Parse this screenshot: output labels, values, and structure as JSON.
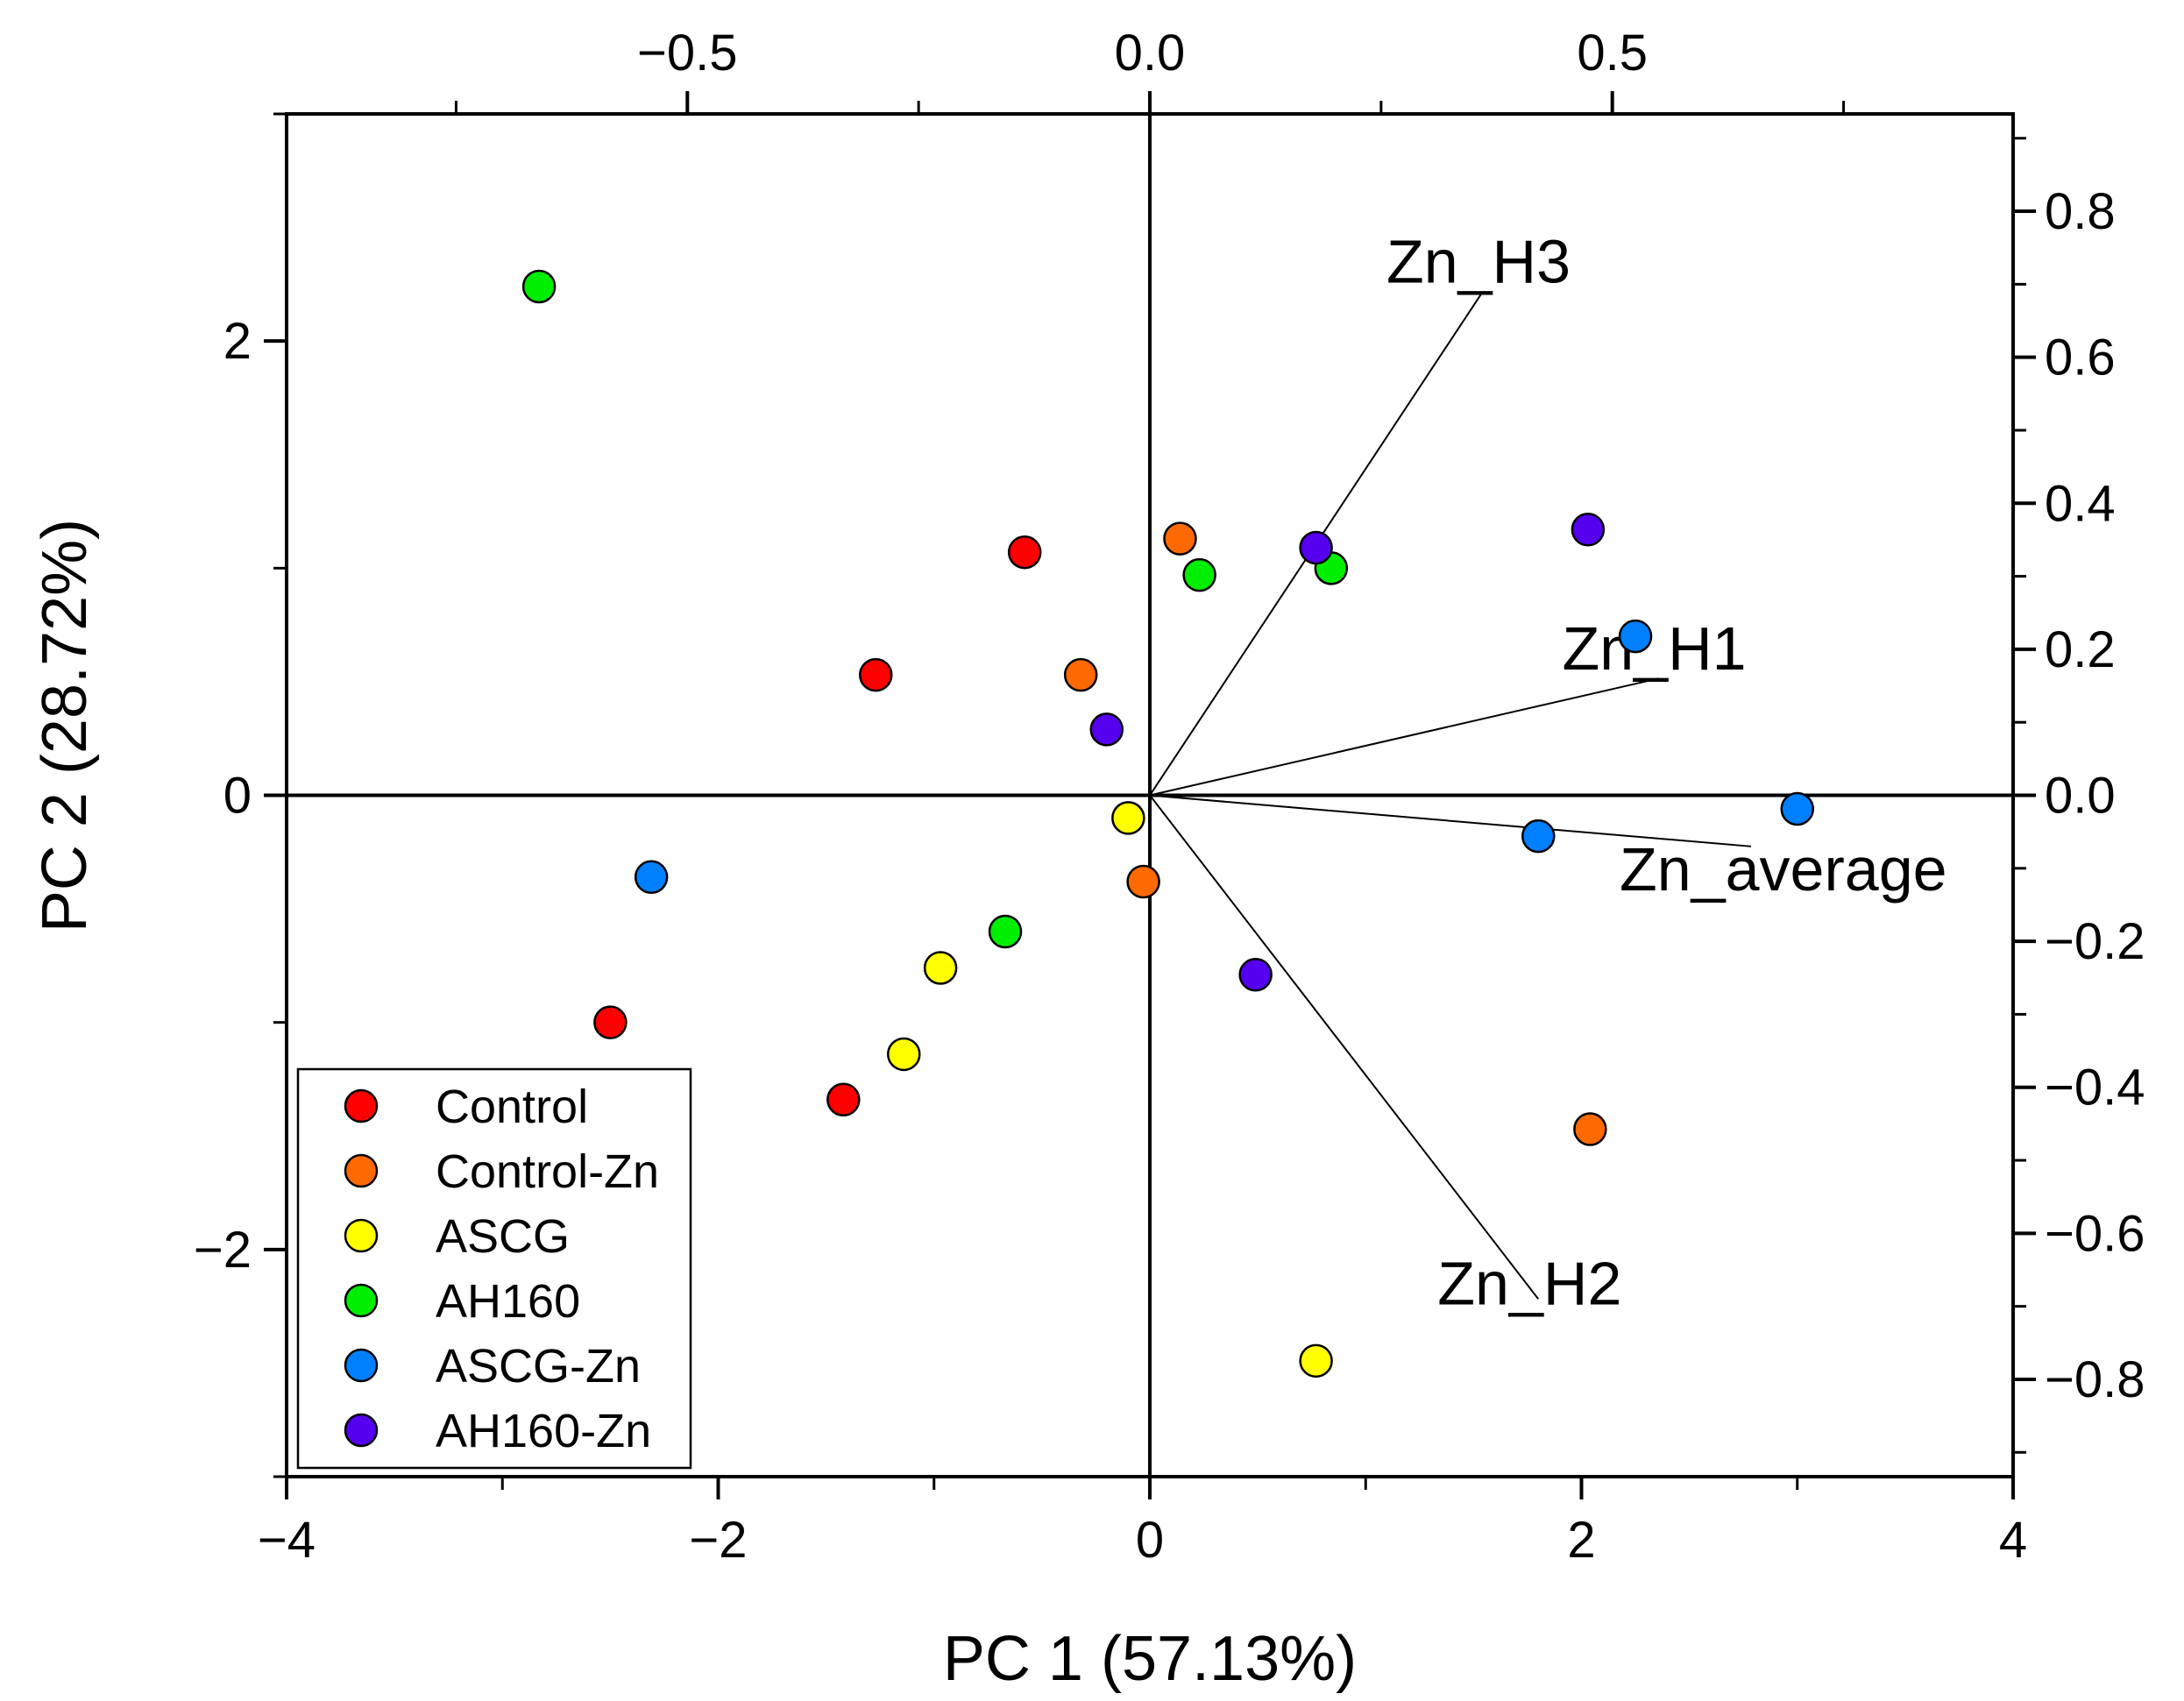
{
  "chart_data": {
    "type": "scatter",
    "title": "",
    "xlabel": "PC 1 (57.13%)",
    "ylabel": "PC 2 (28.72%)",
    "xlim": [
      -4,
      4
    ],
    "ylim": [
      -3,
      3
    ],
    "x_ticks": [
      -4,
      -2,
      0,
      2,
      4
    ],
    "y_ticks": [
      -2,
      0,
      2
    ],
    "top_axis": {
      "lim": [
        -0.9333,
        0.9333
      ],
      "ticks": [
        -0.5,
        0.0,
        0.5
      ]
    },
    "right_axis": {
      "lim": [
        -0.9333,
        0.9333
      ],
      "ticks": [
        -0.8,
        -0.6,
        -0.4,
        -0.2,
        0.0,
        0.2,
        0.4,
        0.6,
        0.8
      ]
    },
    "tick_labels": {
      "x": [
        "−4",
        "−2",
        "0",
        "2",
        "4"
      ],
      "y": [
        "−2",
        "0",
        "2"
      ],
      "top": [
        "−0.5",
        "0.0",
        "0.5"
      ],
      "right": [
        "−0.8",
        "−0.6",
        "−0.4",
        "−0.2",
        "0.0",
        "0.2",
        "0.4",
        "0.6",
        "0.8"
      ]
    },
    "grid": false,
    "legend_position": "bottom-left",
    "series": [
      {
        "name": "Control",
        "color": "#ff0000",
        "points": [
          [
            -0.58,
            1.07
          ],
          [
            -1.27,
            0.53
          ],
          [
            -2.5,
            -1.0
          ],
          [
            -1.42,
            -1.34
          ]
        ]
      },
      {
        "name": "Control-Zn",
        "color": "#ff6a00",
        "points": [
          [
            0.14,
            1.13
          ],
          [
            -0.32,
            0.53
          ],
          [
            -0.03,
            -0.38
          ],
          [
            2.04,
            -1.47
          ]
        ]
      },
      {
        "name": "ASCG",
        "color": "#ffff00",
        "points": [
          [
            -0.1,
            -0.1
          ],
          [
            -0.97,
            -0.76
          ],
          [
            -1.14,
            -1.14
          ],
          [
            0.77,
            -2.49
          ]
        ]
      },
      {
        "name": "AH160",
        "color": "#00ee00",
        "points": [
          [
            -2.83,
            2.24
          ],
          [
            0.23,
            0.97
          ],
          [
            0.84,
            1.0
          ],
          [
            -0.67,
            -0.6
          ]
        ]
      },
      {
        "name": "ASCG-Zn",
        "color": "#0080ff",
        "points": [
          [
            2.25,
            0.7
          ],
          [
            3.0,
            -0.06
          ],
          [
            1.8,
            -0.18
          ],
          [
            -2.31,
            -0.36
          ]
        ]
      },
      {
        "name": "AH160-Zn",
        "color": "#5500ee",
        "points": [
          [
            2.03,
            1.17
          ],
          [
            0.77,
            1.09
          ],
          [
            -0.2,
            0.29
          ],
          [
            0.49,
            -0.79
          ]
        ]
      }
    ],
    "loadings": [
      {
        "name": "Zn_H3",
        "x": 0.36,
        "y": 0.69
      },
      {
        "name": "Zn_H1",
        "x": 0.55,
        "y": 0.16
      },
      {
        "name": "Zn_average",
        "x": 0.65,
        "y": -0.07
      },
      {
        "name": "Zn_H2",
        "x": 0.42,
        "y": -0.69
      }
    ]
  }
}
